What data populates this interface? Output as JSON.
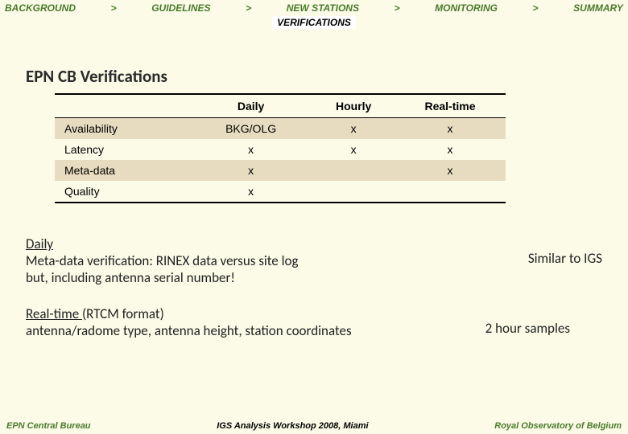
{
  "nav": {
    "items": [
      "BACKGROUND",
      "GUIDELINES",
      "NEW STATIONS",
      "MONITORING",
      "SUMMARY"
    ],
    "separator": ">",
    "active": "VERIFICATIONS"
  },
  "title": "EPN CB Verifications",
  "table": {
    "columns": [
      "",
      "Daily",
      "Hourly",
      "Real-time"
    ],
    "rows": [
      {
        "label": "Availability",
        "cells": [
          "BKG/OLG",
          "x",
          "x"
        ],
        "shaded": true
      },
      {
        "label": "Latency",
        "cells": [
          "x",
          "x",
          "x"
        ],
        "shaded": false
      },
      {
        "label": "Meta-data",
        "cells": [
          "x",
          "",
          "x"
        ],
        "shaded": true
      },
      {
        "label": "Quality",
        "cells": [
          "x",
          "",
          ""
        ],
        "shaded": false
      }
    ]
  },
  "notes": {
    "daily": {
      "label": "Daily",
      "line1": "Meta-data verification: RINEX data versus site log",
      "line2": "but, including antenna serial number!",
      "right": "Similar to IGS"
    },
    "realtime": {
      "label": "Real-time ",
      "suffix": "(RTCM format)",
      "line1": "antenna/radome type, antenna height, station coordinates",
      "right": "2 hour samples"
    }
  },
  "footer": {
    "left": "EPN Central Bureau",
    "center": "IGS Analysis Workshop 2008, Miami",
    "right": "Royal Observatory of Belgium"
  },
  "colors": {
    "bg": "#fbfbe8",
    "green": "#4a7a2a",
    "shaded_row": "#e8dcc0"
  }
}
